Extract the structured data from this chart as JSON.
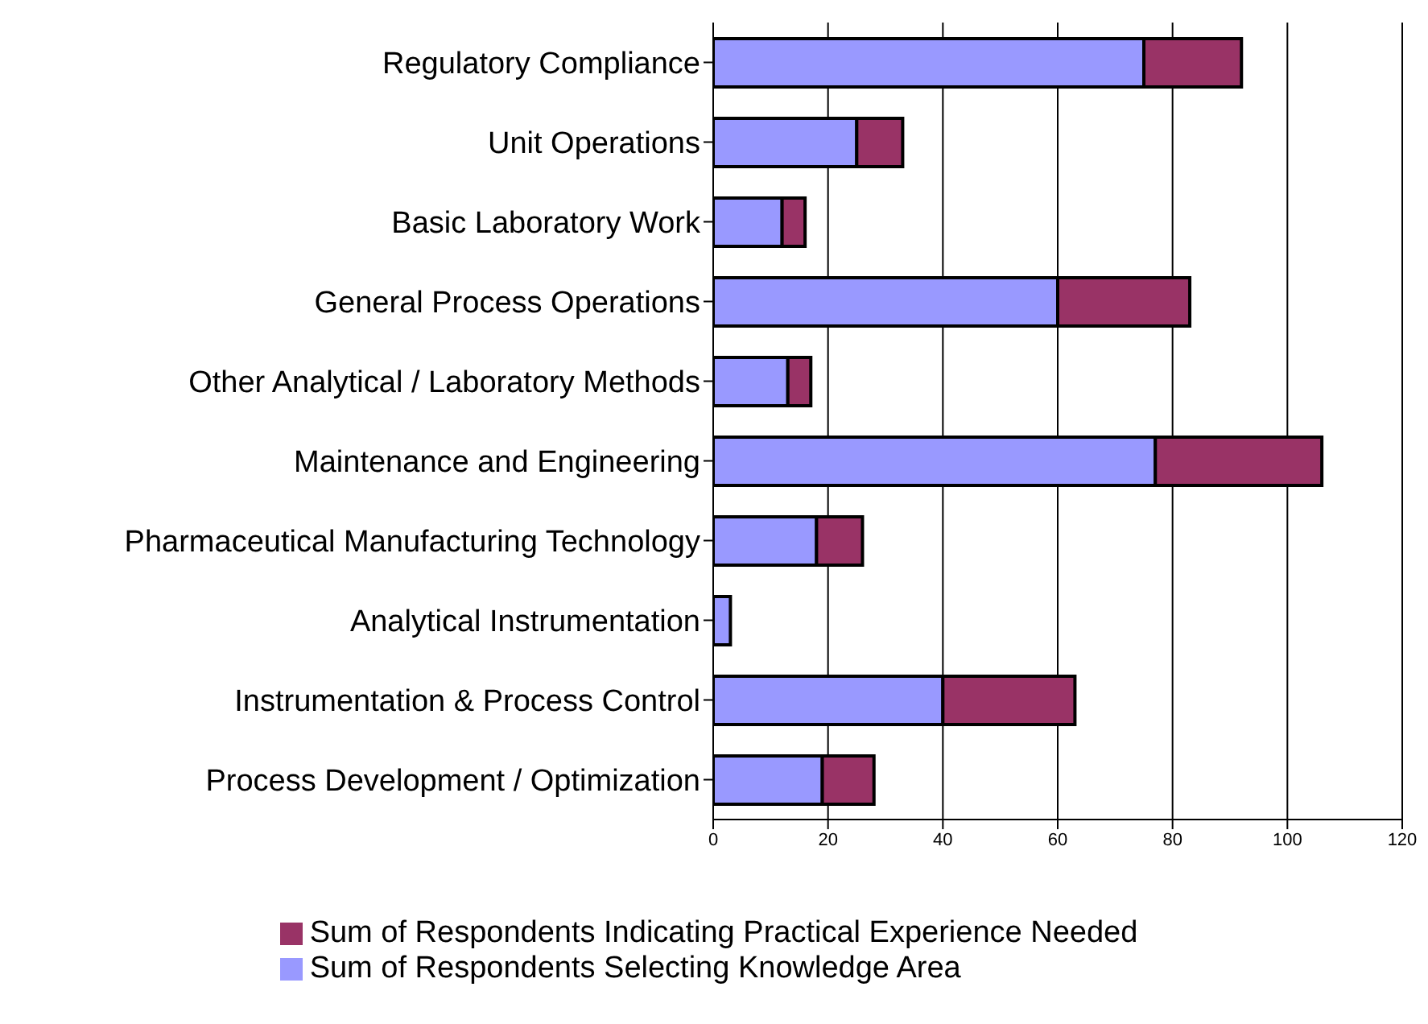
{
  "chart_data": {
    "type": "bar",
    "orientation": "horizontal",
    "stacked": true,
    "categories": [
      "Regulatory Compliance",
      "Unit Operations",
      "Basic Laboratory Work",
      "General Process Operations",
      "Other Analytical / Laboratory Methods",
      "Maintenance and Engineering",
      "Pharmaceutical Manufacturing Technology",
      "Analytical Instrumentation",
      "Instrumentation & Process Control",
      "Process Development / Optimization"
    ],
    "series": [
      {
        "name": "Sum of Respondents Selecting Knowledge Area",
        "color": "#9999ff",
        "values": [
          75,
          25,
          12,
          60,
          13,
          77,
          18,
          3,
          40,
          19
        ]
      },
      {
        "name": "Sum of Respondents Indicating Practical Experience Needed",
        "color": "#993366",
        "values": [
          17,
          8,
          4,
          23,
          4,
          29,
          8,
          0,
          23,
          9
        ]
      }
    ],
    "xlim": [
      0,
      120
    ],
    "xticks": [
      0,
      20,
      40,
      60,
      80,
      100,
      120
    ],
    "grid": "x",
    "legend": "bottom"
  }
}
